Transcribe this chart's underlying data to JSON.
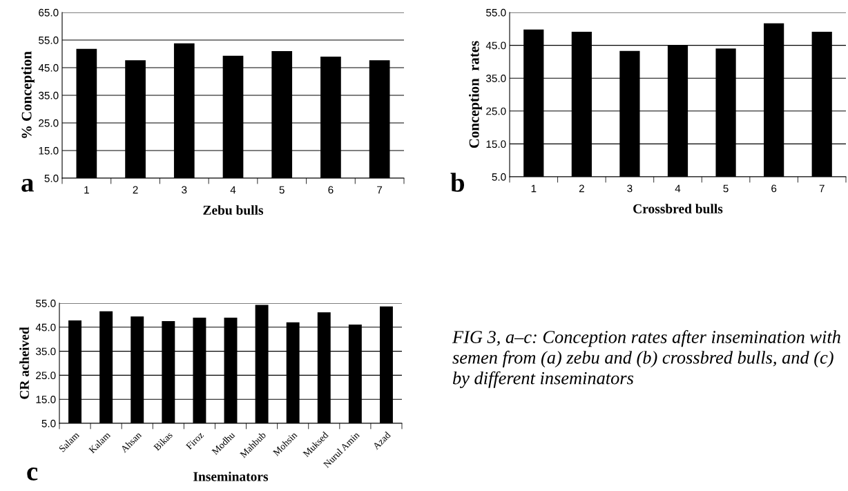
{
  "chart_data": [
    {
      "type": "bar",
      "xlabel": "Zebu bulls",
      "ylabel": "% Conception",
      "categories": [
        "1",
        "2",
        "3",
        "4",
        "5",
        "6",
        "7"
      ],
      "values": [
        51.8,
        47.7,
        53.8,
        49.3,
        51.0,
        49.0,
        47.7
      ],
      "color": "#000000",
      "ylim": [
        5,
        65
      ],
      "yticks": [
        {
          "value": 5,
          "label": "5.0"
        },
        {
          "value": 15,
          "label": "15.0"
        },
        {
          "value": 25,
          "label": "25.0"
        },
        {
          "value": 35,
          "label": "35.0"
        },
        {
          "value": 45,
          "label": "45.0"
        },
        {
          "value": 55,
          "label": "55.0"
        },
        {
          "value": 65,
          "label": "65.0"
        }
      ],
      "grid": "y",
      "annotations": [
        "a"
      ]
    },
    {
      "type": "bar",
      "xlabel": "Crossbred bulls",
      "ylabel": "Conception  rates",
      "categories": [
        "1",
        "2",
        "3",
        "4",
        "5",
        "6",
        "7"
      ],
      "values": [
        49.8,
        49.1,
        43.3,
        45.0,
        44.0,
        51.7,
        49.1
      ],
      "color": "#000000",
      "ylim": [
        5,
        55
      ],
      "yticks": [
        {
          "value": 5,
          "label": "5.0"
        },
        {
          "value": 15,
          "label": "15.0"
        },
        {
          "value": 25,
          "label": "25.0"
        },
        {
          "value": 35,
          "label": "35.0"
        },
        {
          "value": 45,
          "label": "45.0"
        },
        {
          "value": 55,
          "label": "55.0"
        }
      ],
      "grid": "y",
      "annotations": [
        "b"
      ]
    },
    {
      "type": "bar",
      "xlabel": "Inseminators",
      "ylabel": "CR acheived",
      "categories": [
        "Salam",
        "Kalam",
        "Ahsan",
        "Bikas",
        "Firoz",
        "Modhu",
        "Mahbub",
        "Mohsin",
        "Muksed",
        "Nurul Amin",
        "Azad"
      ],
      "values": [
        47.8,
        51.6,
        49.5,
        47.5,
        49.0,
        49.0,
        54.3,
        47.0,
        51.2,
        46.1,
        53.6
      ],
      "color": "#000000",
      "ylim": [
        5,
        55
      ],
      "yticks": [
        {
          "value": 5,
          "label": "5.0"
        },
        {
          "value": 15,
          "label": "15.0"
        },
        {
          "value": 25,
          "label": "25.0"
        },
        {
          "value": 35,
          "label": "35.0"
        },
        {
          "value": 45,
          "label": "45.0"
        },
        {
          "value": 55,
          "label": "55.0"
        }
      ],
      "grid": "y",
      "annotations": [
        "c",
        "FIG 3, a–c: Conception rates after insemination with semen from (a) zebu and (b) crossbred bulls, and (c) by different inseminators"
      ]
    }
  ]
}
